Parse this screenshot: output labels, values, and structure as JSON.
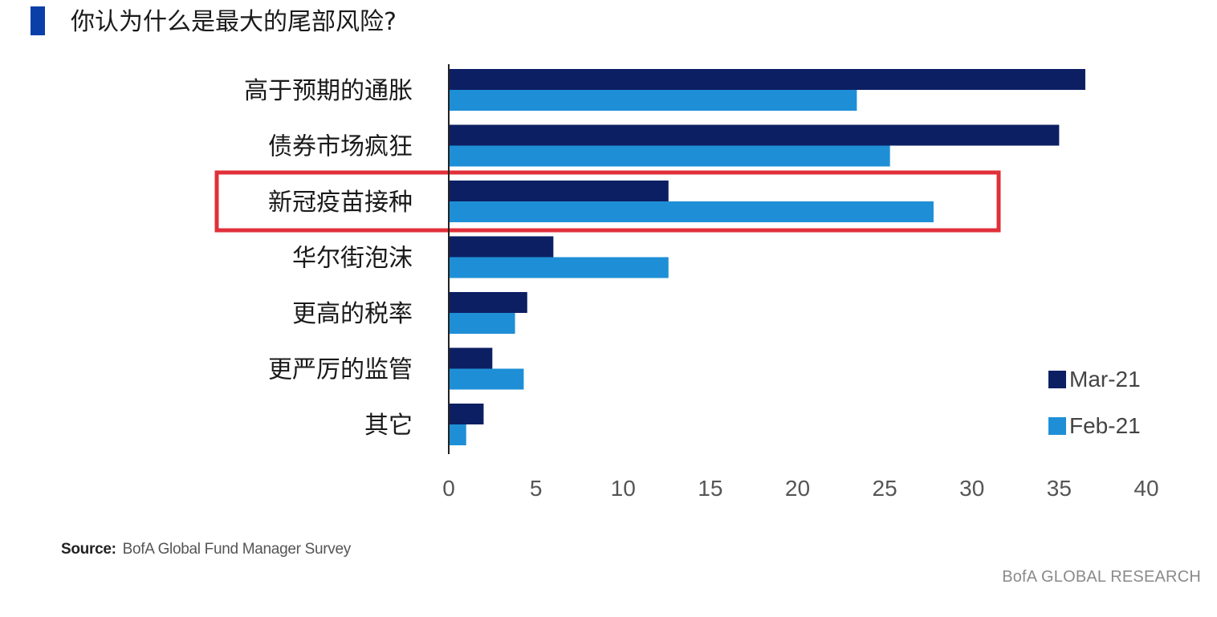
{
  "chart_data": {
    "type": "bar",
    "orientation": "horizontal",
    "title": "你认为什么是最大的尾部风险?",
    "categories": [
      "高于预期的通胀",
      "债券市场疯狂",
      "新冠疫苗接种",
      "华尔街泡沫",
      "更高的税率",
      "更严厉的监管",
      "其它"
    ],
    "series": [
      {
        "name": "Mar-21",
        "color": "#0d1f63",
        "values": [
          36.5,
          35,
          12.6,
          6,
          4.5,
          2.5,
          2
        ]
      },
      {
        "name": "Feb-21",
        "color": "#1e8fd6",
        "values": [
          23.4,
          25.3,
          27.8,
          12.6,
          3.8,
          4.3,
          1
        ]
      }
    ],
    "xlim": [
      0,
      40
    ],
    "xticks": [
      0,
      5,
      10,
      15,
      20,
      25,
      30,
      35,
      40
    ],
    "highlight_category": "新冠疫苗接种",
    "highlight_color": "#e0303a",
    "legend_position": "bottom-right",
    "grid": false
  },
  "footer": {
    "source_label": "Source:",
    "source_text": "BofA Global Fund Manager Survey",
    "brand": "BofA GLOBAL RESEARCH"
  }
}
